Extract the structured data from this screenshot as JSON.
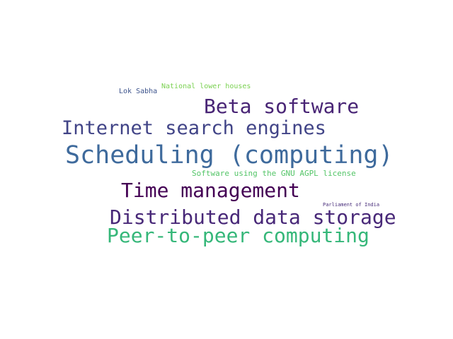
{
  "words": [
    {
      "text": "National lower houses",
      "color": "#7ad151"
    },
    {
      "text": "Lok Sabha",
      "color": "#3b528b"
    },
    {
      "text": "Beta software",
      "color": "#482475"
    },
    {
      "text": "Internet search engines",
      "color": "#414487"
    },
    {
      "text": "Scheduling (computing)",
      "color": "#3e6a9c"
    },
    {
      "text": "Software using the GNU AGPL license",
      "color": "#54c568"
    },
    {
      "text": "Time management",
      "color": "#440154"
    },
    {
      "text": "Parliament of India",
      "color": "#472c7a"
    },
    {
      "text": "Distributed data storage",
      "color": "#482878"
    },
    {
      "text": "Peer-to-peer computing",
      "color": "#35b779"
    }
  ]
}
